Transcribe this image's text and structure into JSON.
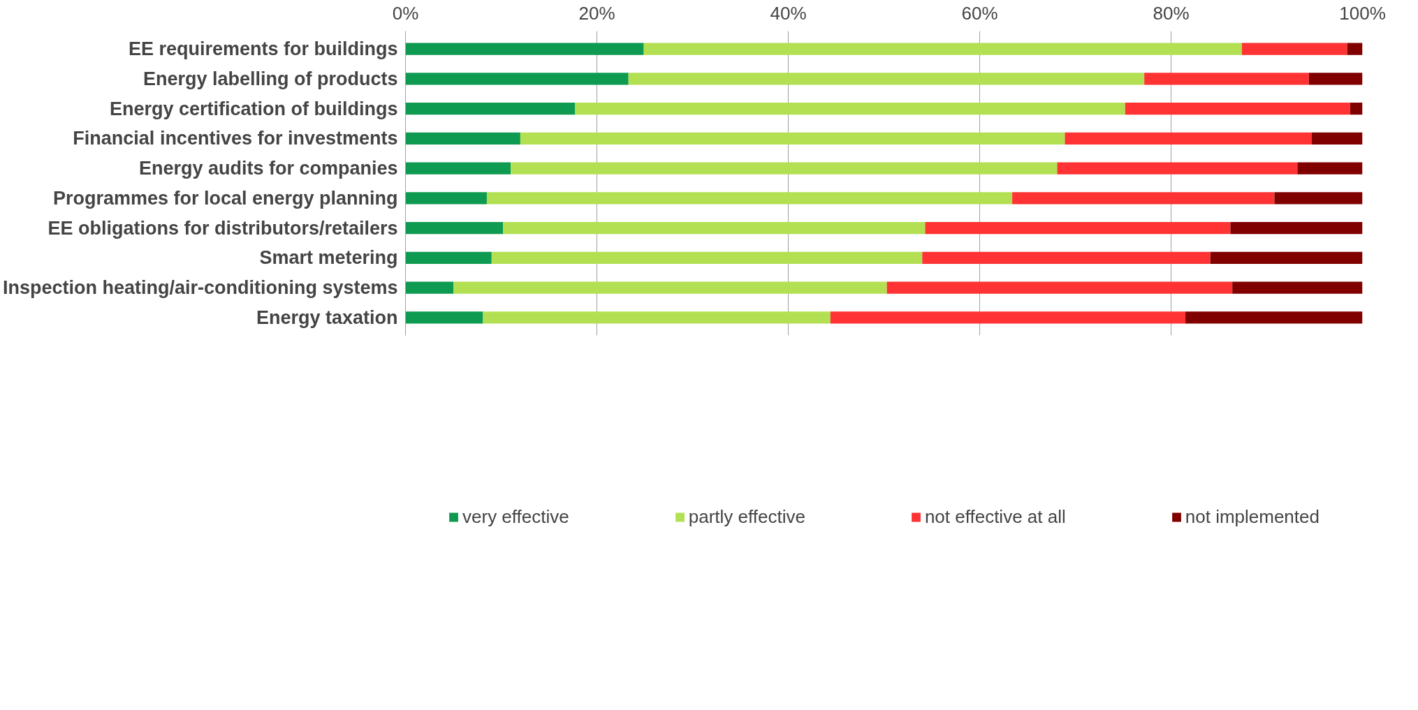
{
  "chart_data": {
    "type": "bar",
    "orientation": "horizontal",
    "stacked": true,
    "categories": [
      "EE requirements for buildings",
      "Energy labelling of products",
      "Energy certification of buildings",
      "Financial incentives for investments",
      "Energy audits for companies",
      "Programmes for local energy planning",
      "EE obligations for distributors/retailers",
      "Smart metering",
      "Inspection heating/air-conditioning systems",
      "Energy taxation"
    ],
    "series": [
      {
        "name": "very effective",
        "color": "#0e9a51",
        "values": [
          24.9,
          23.3,
          17.7,
          12.0,
          11.0,
          8.5,
          10.2,
          9.0,
          5.0,
          8.1
        ]
      },
      {
        "name": "partly effective",
        "color": "#b3e052",
        "values": [
          62.5,
          53.9,
          57.5,
          56.9,
          57.1,
          54.9,
          44.1,
          45.0,
          45.3,
          36.3
        ]
      },
      {
        "name": "not effective at all",
        "color": "#ff3333",
        "values": [
          11.0,
          17.2,
          23.5,
          25.8,
          25.1,
          27.4,
          31.9,
          30.1,
          36.1,
          37.1
        ]
      },
      {
        "name": "not implemented",
        "color": "#800000",
        "values": [
          1.6,
          5.6,
          1.3,
          5.3,
          6.8,
          9.2,
          13.8,
          15.9,
          13.6,
          18.5
        ]
      }
    ],
    "xlim": [
      0,
      100
    ],
    "xticks": [
      {
        "value": 0,
        "label": "0%"
      },
      {
        "value": 20,
        "label": "20%"
      },
      {
        "value": 40,
        "label": "40%"
      },
      {
        "value": 60,
        "label": "60%"
      },
      {
        "value": 80,
        "label": "80%"
      },
      {
        "value": 100,
        "label": "100%"
      }
    ],
    "grid": "x",
    "legend": "bottom"
  }
}
